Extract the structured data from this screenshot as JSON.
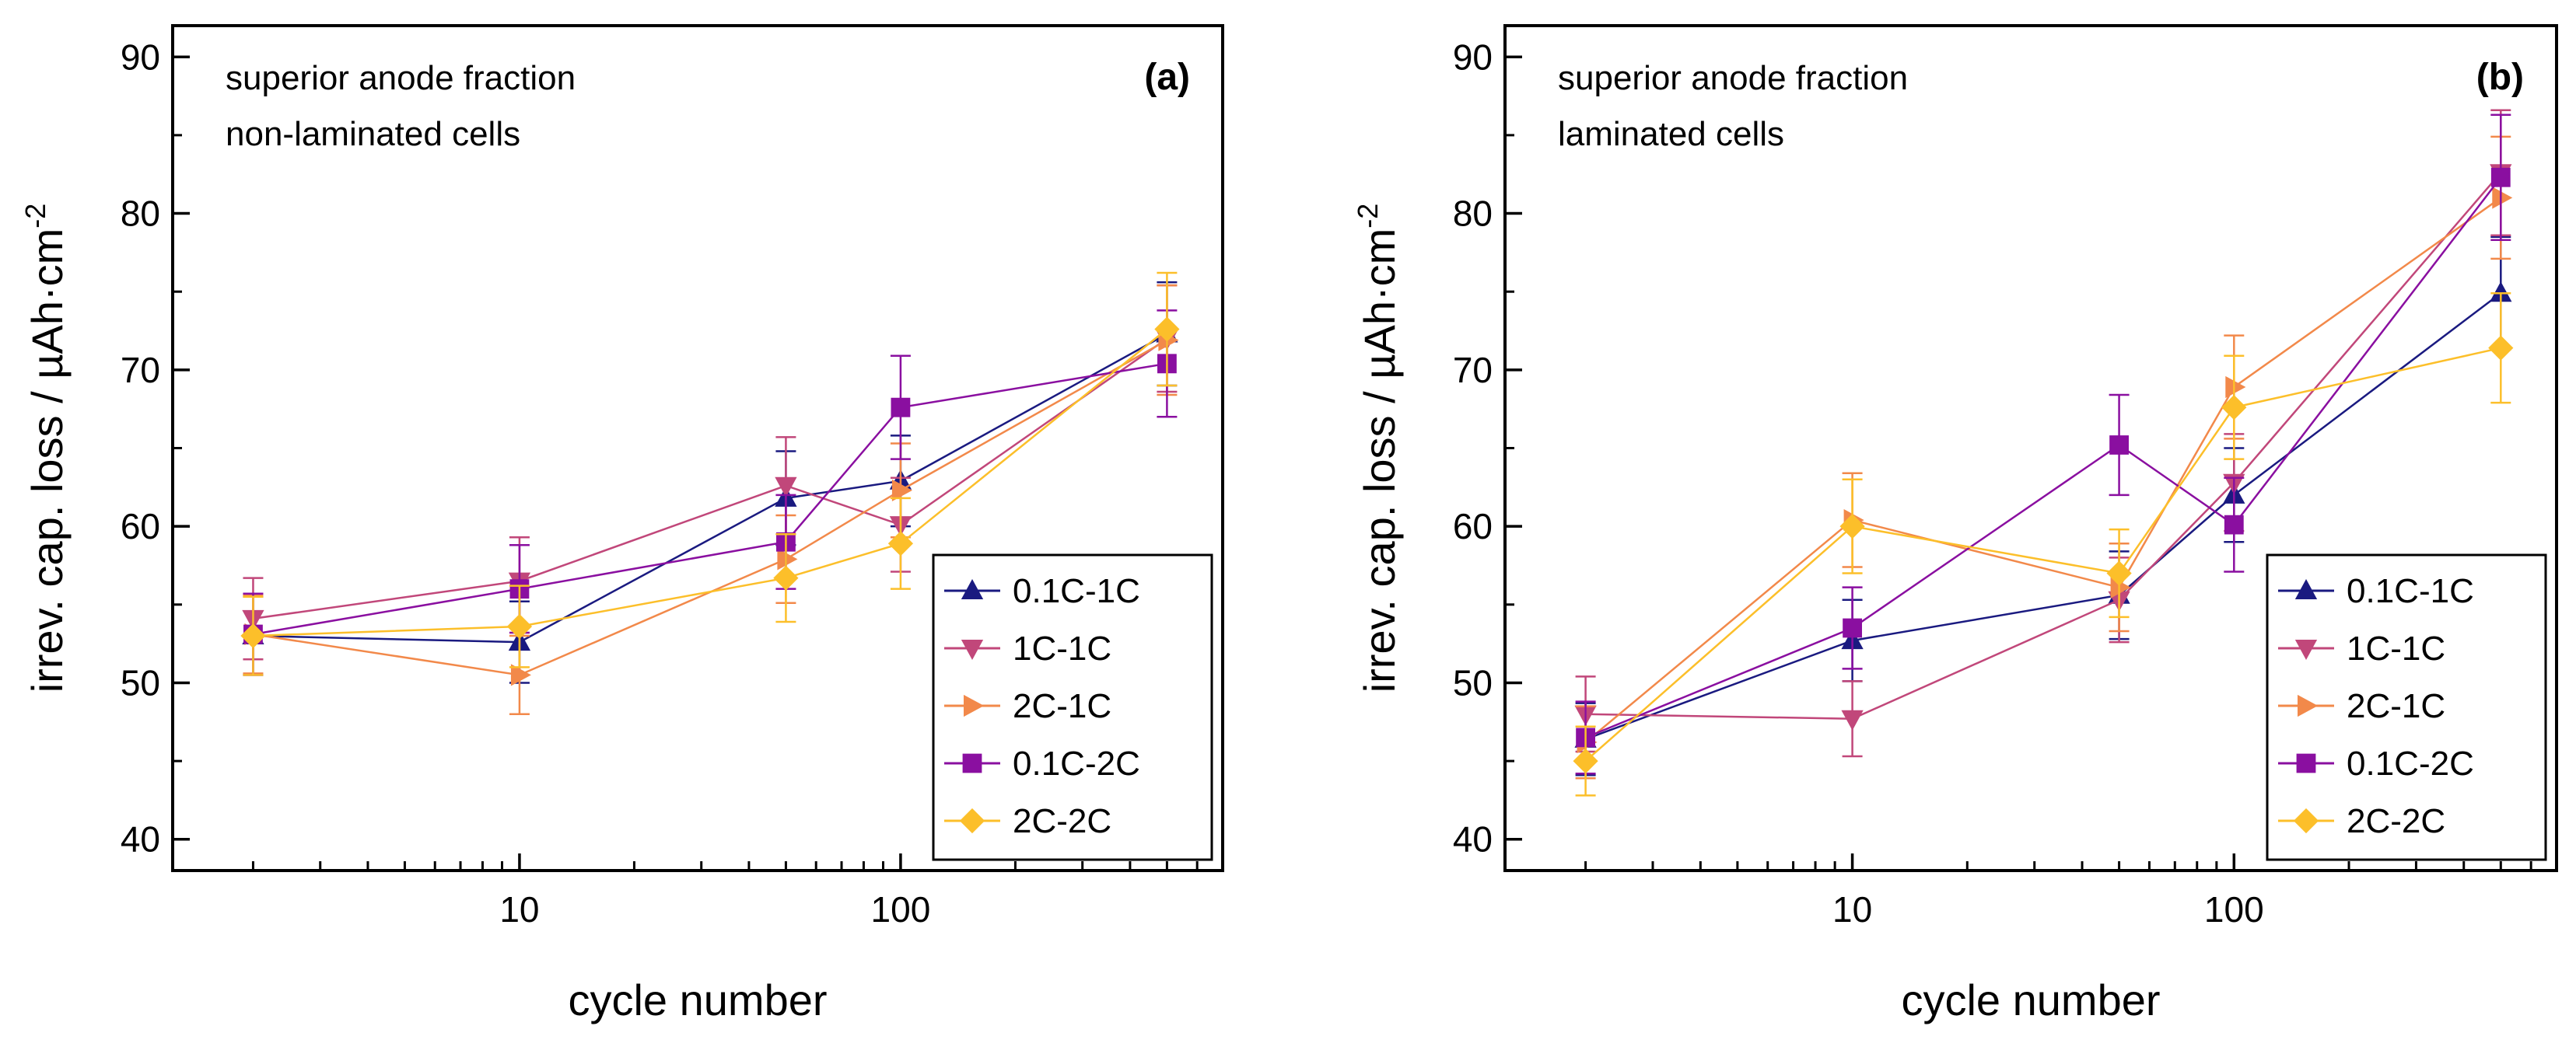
{
  "chart_data": [
    {
      "type": "line",
      "panel": "(a)",
      "annotation": [
        "superior anode fraction",
        "non-laminated cells"
      ],
      "xlabel": "cycle number",
      "ylabel": "irrev. cap. loss / µAh·cm",
      "ylabel_sup": "-2",
      "xscale": "log",
      "xlim": [
        1.23,
        700
      ],
      "ylim": [
        38,
        92
      ],
      "xticks": [
        {
          "value": 10,
          "label": "10"
        },
        {
          "value": 100,
          "label": "100"
        }
      ],
      "yticks": [
        {
          "value": 40,
          "label": "40"
        },
        {
          "value": 50,
          "label": "50"
        },
        {
          "value": 60,
          "label": "60"
        },
        {
          "value": 70,
          "label": "70"
        },
        {
          "value": 80,
          "label": "80"
        },
        {
          "value": 90,
          "label": "90"
        }
      ],
      "legend_position": "bottom-right",
      "x": [
        2,
        10,
        50,
        100,
        500
      ],
      "series": [
        {
          "name": "0.1C-1C",
          "color": "#1a1a80",
          "marker": "triangle-up",
          "values": [
            53.0,
            52.6,
            61.8,
            62.9,
            72.3
          ],
          "errors": [
            2.5,
            2.6,
            3.0,
            2.9,
            3.3
          ]
        },
        {
          "name": "1C-1C",
          "color": "#c1477a",
          "marker": "triangle-down",
          "values": [
            54.1,
            56.5,
            62.6,
            60.1,
            72.0
          ],
          "errors": [
            2.6,
            2.8,
            3.1,
            3.0,
            3.4
          ]
        },
        {
          "name": "2C-1C",
          "color": "#f2894a",
          "marker": "triangle-right",
          "values": [
            53.1,
            50.5,
            57.9,
            62.3,
            71.9
          ],
          "errors": [
            2.5,
            2.5,
            2.8,
            3.0,
            3.5
          ]
        },
        {
          "name": "0.1C-2C",
          "color": "#8a0fa0",
          "marker": "square",
          "values": [
            53.1,
            56.0,
            59.0,
            67.6,
            70.4
          ],
          "errors": [
            2.6,
            2.8,
            3.0,
            3.3,
            3.4
          ]
        },
        {
          "name": "2C-2C",
          "color": "#fcbf2a",
          "marker": "diamond",
          "values": [
            53.0,
            53.6,
            56.7,
            58.9,
            72.6
          ],
          "errors": [
            2.5,
            2.6,
            2.8,
            2.9,
            3.6
          ]
        }
      ]
    },
    {
      "type": "line",
      "panel": "(b)",
      "annotation": [
        "superior anode fraction",
        "laminated cells"
      ],
      "xlabel": "cycle number",
      "ylabel": "irrev. cap. loss / µAh·cm",
      "ylabel_sup": "-2",
      "xscale": "log",
      "xlim": [
        1.23,
        700
      ],
      "ylim": [
        38,
        92
      ],
      "xticks": [
        {
          "value": 10,
          "label": "10"
        },
        {
          "value": 100,
          "label": "100"
        }
      ],
      "yticks": [
        {
          "value": 40,
          "label": "40"
        },
        {
          "value": 50,
          "label": "50"
        },
        {
          "value": 60,
          "label": "60"
        },
        {
          "value": 70,
          "label": "70"
        },
        {
          "value": 80,
          "label": "80"
        },
        {
          "value": 90,
          "label": "90"
        }
      ],
      "legend_position": "bottom-right",
      "x": [
        2,
        10,
        50,
        100,
        500
      ],
      "series": [
        {
          "name": "0.1C-1C",
          "color": "#1a1a80",
          "marker": "triangle-up",
          "values": [
            46.4,
            52.7,
            55.6,
            62.0,
            74.9
          ],
          "errors": [
            2.3,
            2.6,
            2.8,
            3.0,
            3.6
          ]
        },
        {
          "name": "1C-1C",
          "color": "#c1477a",
          "marker": "triangle-down",
          "values": [
            48.0,
            47.7,
            55.3,
            62.8,
            82.6
          ],
          "errors": [
            2.4,
            2.4,
            2.7,
            3.1,
            4.0
          ]
        },
        {
          "name": "2C-1C",
          "color": "#f2894a",
          "marker": "triangle-right",
          "values": [
            46.2,
            60.4,
            56.1,
            68.9,
            81.0
          ],
          "errors": [
            2.3,
            3.0,
            2.8,
            3.3,
            3.9
          ]
        },
        {
          "name": "0.1C-2C",
          "color": "#8a0fa0",
          "marker": "square",
          "values": [
            46.5,
            53.5,
            65.2,
            60.1,
            82.3
          ],
          "errors": [
            2.3,
            2.6,
            3.2,
            3.0,
            4.0
          ]
        },
        {
          "name": "2C-2C",
          "color": "#fcbf2a",
          "marker": "diamond",
          "values": [
            45.0,
            60.0,
            57.0,
            67.6,
            71.4
          ],
          "errors": [
            2.2,
            3.0,
            2.8,
            3.3,
            3.5
          ]
        }
      ]
    }
  ]
}
